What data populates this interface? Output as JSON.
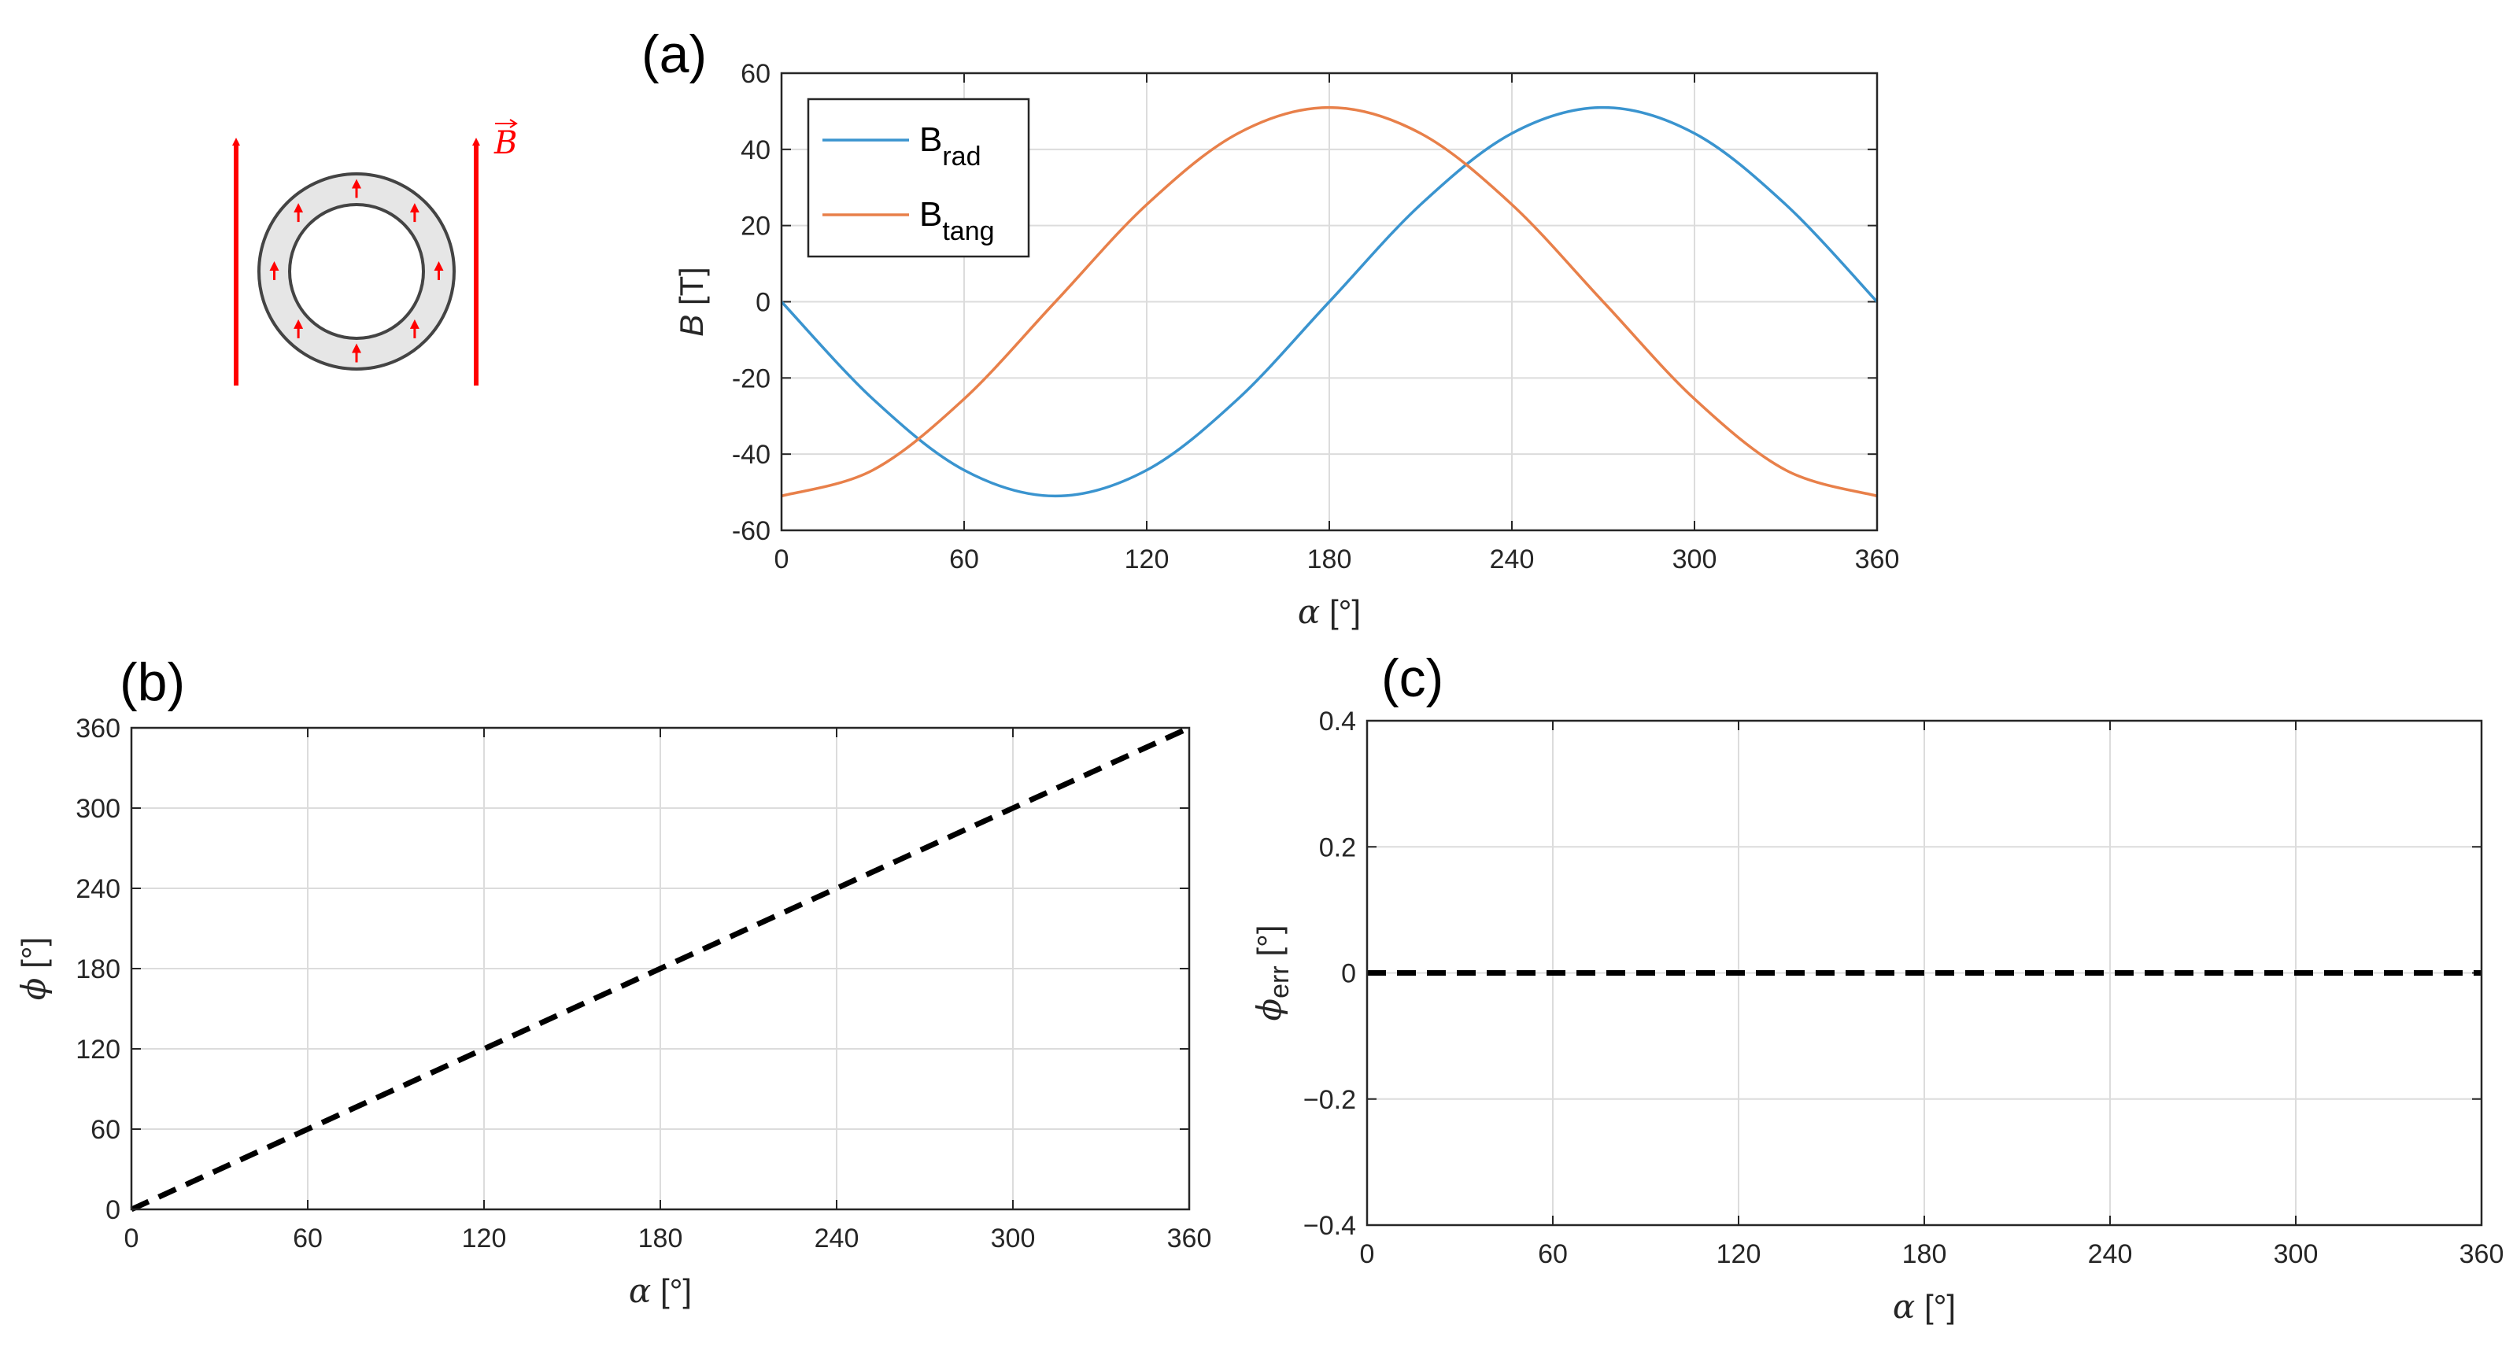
{
  "schematic": {
    "field_label": "B",
    "field_color": "#ff0000"
  },
  "colors": {
    "rad": "#3a94cf",
    "tang": "#e8804a",
    "dashed": "#000000"
  },
  "chart_data": [
    {
      "panel": "(a)",
      "type": "line",
      "xlabel_symbol": "α",
      "xlabel_unit": " [°]",
      "ylabel_symbol": "B",
      "ylabel_unit": " [T]",
      "xlim": [
        0,
        360
      ],
      "ylim": [
        -60,
        60
      ],
      "xticks": [
        0,
        60,
        120,
        180,
        240,
        300,
        360
      ],
      "yticks": [
        -60,
        -40,
        -20,
        0,
        20,
        40,
        60
      ],
      "grid": true,
      "legend_position": "top-left",
      "x": [
        0,
        30,
        60,
        90,
        120,
        150,
        180,
        210,
        240,
        270,
        300,
        330,
        360
      ],
      "series": [
        {
          "name": "B",
          "subscript": "rad",
          "color_key": "rad",
          "values": [
            0,
            -25.5,
            -44.2,
            -51,
            -44.2,
            -25.5,
            0,
            25.5,
            44.2,
            51,
            44.2,
            25.5,
            0
          ]
        },
        {
          "name": "B",
          "subscript": "tang",
          "color_key": "tang",
          "values": [
            -51,
            -44.2,
            -25.5,
            0,
            25.5,
            44.2,
            51,
            44.2,
            25.5,
            0,
            -25.5,
            -44.2,
            -51
          ]
        }
      ]
    },
    {
      "panel": "(b)",
      "type": "line",
      "xlabel_symbol": "α",
      "xlabel_unit": " [°]",
      "ylabel_symbol": "ϕ",
      "ylabel_unit": " [°]",
      "xlim": [
        0,
        360
      ],
      "ylim": [
        0,
        360
      ],
      "xticks": [
        0,
        60,
        120,
        180,
        240,
        300,
        360
      ],
      "yticks": [
        0,
        60,
        120,
        180,
        240,
        300,
        360
      ],
      "grid": true,
      "x": [
        0,
        360
      ],
      "series": [
        {
          "name": "",
          "style": "dashed",
          "color_key": "dashed",
          "values": [
            0,
            360
          ]
        }
      ]
    },
    {
      "panel": "(c)",
      "type": "line",
      "xlabel_symbol": "α",
      "xlabel_unit": " [°]",
      "ylabel_symbol": "ϕ",
      "ylabel_sub": "err",
      "ylabel_unit": " [°]",
      "xlim": [
        0,
        360
      ],
      "ylim": [
        -0.4,
        0.4
      ],
      "xticks": [
        0,
        60,
        120,
        180,
        240,
        300,
        360
      ],
      "yticks": [
        -0.4,
        -0.2,
        0,
        0.2,
        0.4
      ],
      "ytick_labels": [
        "−0.4",
        "−0.2",
        "0",
        "0.2",
        "0.4"
      ],
      "grid": true,
      "x": [
        0,
        360
      ],
      "series": [
        {
          "name": "",
          "style": "dashed",
          "color_key": "dashed",
          "values": [
            0,
            0
          ]
        }
      ]
    }
  ]
}
